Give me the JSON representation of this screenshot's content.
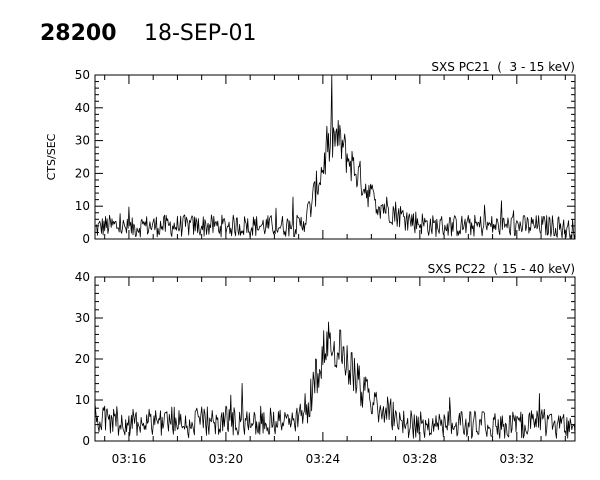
{
  "header": {
    "id": "28200",
    "date": "18-SEP-01"
  },
  "chart_data": [
    {
      "type": "line",
      "title": "SXS PC21  (  3 - 15 keV)",
      "ylabel": "CTS/SEC",
      "xlabel": "",
      "xlim": [
        "03:14:36",
        "03:34:24"
      ],
      "ylim": [
        0,
        50
      ],
      "yticks": [
        0,
        10,
        20,
        30,
        40,
        50
      ],
      "xticks": [],
      "grid": false,
      "series": [
        {
          "values_note": "",
          "x": [
            "03:14:36",
            "03:15:00",
            "03:15:30",
            "03:16:00",
            "03:16:30",
            "03:17:00",
            "03:17:30",
            "03:18:00",
            "03:18:30",
            "03:19:00",
            "03:19:30",
            "03:20:00",
            "03:20:30",
            "03:21:00",
            "03:21:30",
            "03:22:00",
            "03:22:30",
            "03:23:00",
            "03:23:10",
            "03:23:20",
            "03:23:30",
            "03:23:40",
            "03:23:50",
            "03:24:00",
            "03:24:10",
            "03:24:20",
            "03:24:30",
            "03:24:40",
            "03:24:50",
            "03:25:00",
            "03:25:10",
            "03:25:20",
            "03:25:30",
            "03:25:40",
            "03:25:50",
            "03:26:00",
            "03:26:15",
            "03:26:30",
            "03:26:45",
            "03:27:00",
            "03:27:15",
            "03:27:30",
            "03:28:00",
            "03:28:30",
            "03:29:00",
            "03:29:30",
            "03:30:00",
            "03:30:30",
            "03:31:00",
            "03:31:30",
            "03:32:00",
            "03:32:30",
            "03:33:00",
            "03:33:30",
            "03:34:00",
            "03:34:24"
          ],
          "y": [
            3,
            4,
            4,
            3,
            4,
            4,
            4,
            4,
            4,
            4,
            4,
            4,
            4,
            4,
            4,
            4,
            4,
            4,
            5,
            7,
            10,
            14,
            18,
            22,
            26,
            29,
            31,
            30,
            28,
            25,
            23,
            21,
            19,
            17,
            15,
            13,
            11,
            10,
            9,
            8,
            7,
            6,
            5,
            4,
            4,
            4,
            4,
            4,
            4,
            4,
            4,
            4,
            4,
            4,
            3,
            3
          ]
        }
      ]
    },
    {
      "type": "line",
      "title": "SXS PC22  ( 15 - 40 keV)",
      "ylabel": "",
      "xlabel": "",
      "xlim": [
        "03:14:36",
        "03:34:24"
      ],
      "ylim": [
        0,
        40
      ],
      "yticks": [
        0,
        10,
        20,
        30,
        40
      ],
      "xticks": [
        "03:16",
        "03:20",
        "03:24",
        "03:28",
        "03:32"
      ],
      "grid": false,
      "series": [
        {
          "values_note": "",
          "x": [
            "03:14:36",
            "03:15:00",
            "03:15:30",
            "03:16:00",
            "03:16:30",
            "03:17:00",
            "03:17:30",
            "03:18:00",
            "03:18:30",
            "03:19:00",
            "03:19:30",
            "03:20:00",
            "03:20:30",
            "03:21:00",
            "03:21:30",
            "03:22:00",
            "03:22:30",
            "03:23:00",
            "03:23:10",
            "03:23:20",
            "03:23:30",
            "03:23:40",
            "03:23:50",
            "03:24:00",
            "03:24:10",
            "03:24:20",
            "03:24:30",
            "03:24:40",
            "03:24:50",
            "03:25:00",
            "03:25:10",
            "03:25:20",
            "03:25:30",
            "03:25:40",
            "03:25:50",
            "03:26:00",
            "03:26:15",
            "03:26:30",
            "03:26:45",
            "03:27:00",
            "03:27:15",
            "03:27:30",
            "03:28:00",
            "03:28:30",
            "03:29:00",
            "03:29:30",
            "03:30:00",
            "03:30:30",
            "03:31:00",
            "03:31:30",
            "03:32:00",
            "03:32:30",
            "03:33:00",
            "03:33:30",
            "03:34:00",
            "03:34:24"
          ],
          "y": [
            6,
            5,
            5,
            4,
            5,
            5,
            5,
            5,
            4,
            5,
            5,
            5,
            5,
            5,
            5,
            5,
            5,
            5,
            6,
            8,
            11,
            15,
            18,
            21,
            23,
            24,
            23,
            22,
            21,
            20,
            18,
            16,
            14,
            12,
            11,
            10,
            9,
            8,
            7,
            6,
            5,
            4,
            4,
            4,
            4,
            4,
            4,
            4,
            4,
            4,
            4,
            4,
            5,
            4,
            4,
            4
          ]
        }
      ]
    }
  ]
}
